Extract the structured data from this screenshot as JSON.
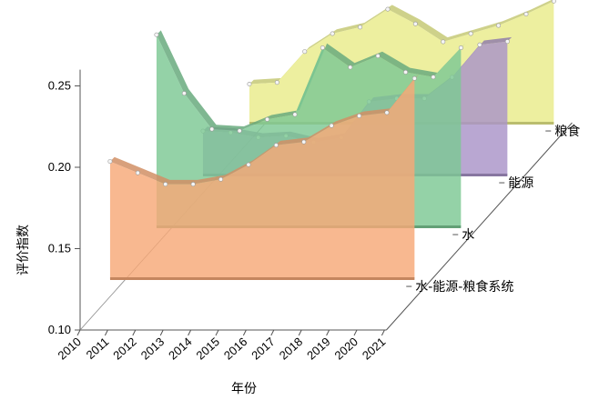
{
  "chart_data": {
    "type": "area",
    "xlabel": "年份",
    "ylabel": "评价指数",
    "x": [
      "2010",
      "2011",
      "2012",
      "2013",
      "2014",
      "2015",
      "2016",
      "2017",
      "2018",
      "2019",
      "2020",
      "2021"
    ],
    "yticks": [
      "0.10",
      "0.15",
      "0.20",
      "0.25"
    ],
    "ylim": [
      0.1,
      0.26
    ],
    "grid": false,
    "series": [
      {
        "name": "水-能源-粮食系统",
        "color": "#f6a877",
        "values": [
          0.202,
          0.195,
          0.188,
          0.188,
          0.191,
          0.2,
          0.212,
          0.214,
          0.224,
          0.23,
          0.232,
          0.253
        ]
      },
      {
        "name": "水",
        "color": "#7cc894",
        "values": [
          0.248,
          0.212,
          0.19,
          0.189,
          0.196,
          0.199,
          0.24,
          0.228,
          0.235,
          0.225,
          0.222,
          0.24
        ]
      },
      {
        "name": "能源",
        "color": "#a994c8",
        "values": [
          0.157,
          0.156,
          0.153,
          0.154,
          0.15,
          0.153,
          0.175,
          0.177,
          0.177,
          0.19,
          0.21,
          0.212
        ]
      },
      {
        "name": "粮食",
        "color": "#e9ec8a",
        "values": [
          0.154,
          0.155,
          0.174,
          0.185,
          0.189,
          0.2,
          0.191,
          0.18,
          0.185,
          0.19,
          0.197,
          0.205
        ]
      }
    ]
  }
}
